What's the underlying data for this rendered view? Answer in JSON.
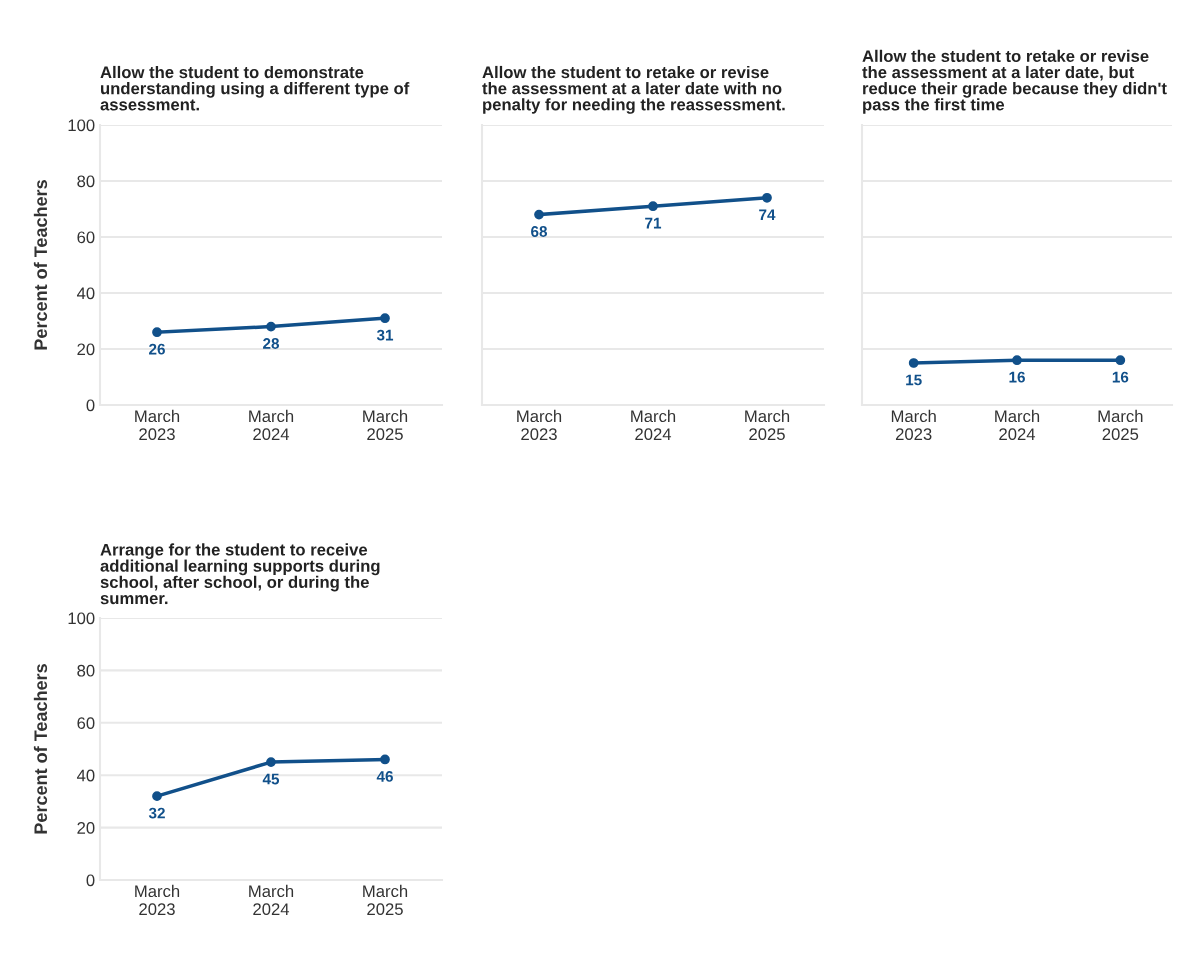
{
  "chart_data": [
    {
      "type": "line",
      "title": "Allow the student to demonstrate\nunderstanding using a different type of\nassessment.",
      "ylabel": "Percent of Teachers",
      "categories": [
        "March\n2023",
        "March\n2024",
        "March\n2025"
      ],
      "series": [
        {
          "color": "#11508a",
          "values": [
            26,
            28,
            31
          ]
        }
      ],
      "ylim": [
        0,
        100
      ],
      "yticks": [
        0,
        20,
        40,
        60,
        80,
        100
      ],
      "grid": "y",
      "marker": "circle",
      "data_labels": true
    },
    {
      "type": "line",
      "title": "Allow the student to retake or revise\nthe assessment at a later date with no\npenalty for needing the reassessment.",
      "categories": [
        "March\n2023",
        "March\n2024",
        "March\n2025"
      ],
      "series": [
        {
          "color": "#11508a",
          "values": [
            68,
            71,
            74
          ]
        }
      ],
      "ylim": [
        0,
        100
      ],
      "yticks": [
        0,
        20,
        40,
        60,
        80,
        100
      ],
      "grid": "y",
      "marker": "circle",
      "data_labels": true,
      "tick_labels": "x"
    },
    {
      "type": "line",
      "title": "Allow the student to retake or revise\nthe assessment at a later date, but\nreduce their grade because they didn't\npass the first time",
      "categories": [
        "March\n2023",
        "March\n2024",
        "March\n2025"
      ],
      "series": [
        {
          "color": "#11508a",
          "values": [
            15,
            16,
            16
          ]
        }
      ],
      "ylim": [
        0,
        100
      ],
      "yticks": [
        0,
        20,
        40,
        60,
        80,
        100
      ],
      "grid": "y",
      "marker": "circle",
      "data_labels": true,
      "tick_labels": "x"
    },
    {
      "type": "line",
      "title": "Arrange for the student to receive\nadditional learning supports during\nschool, after school, or during the\nsummer.",
      "ylabel": "Percent of Teachers",
      "categories": [
        "March\n2023",
        "March\n2024",
        "March\n2025"
      ],
      "series": [
        {
          "color": "#11508a",
          "values": [
            32,
            45,
            46
          ]
        }
      ],
      "ylim": [
        0,
        100
      ],
      "yticks": [
        0,
        20,
        40,
        60,
        80,
        100
      ],
      "grid": "y",
      "marker": "circle",
      "data_labels": true
    }
  ]
}
